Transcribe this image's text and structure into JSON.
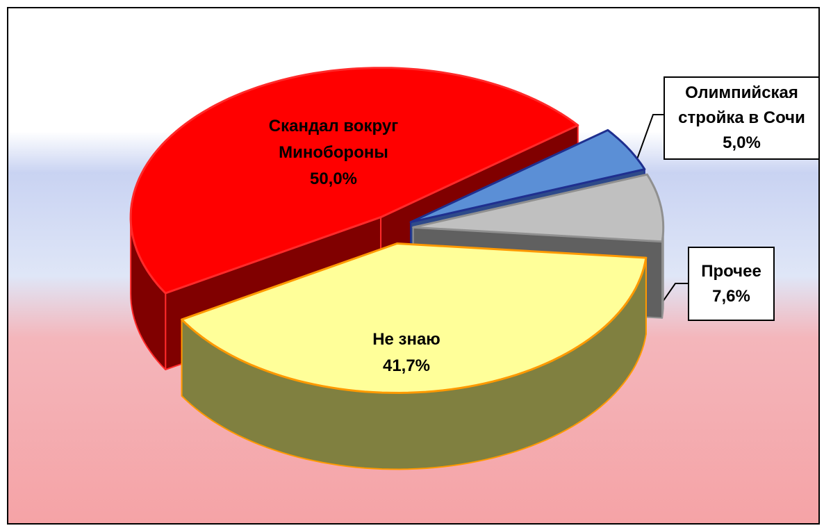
{
  "chart_data": {
    "type": "pie",
    "categories": [
      "Олимпийская стройка в Сочи",
      "Прочее",
      "Не знаю",
      "Скандал вокруг Минобороны"
    ],
    "values": [
      5.0,
      7.6,
      41.7,
      50.0
    ],
    "value_labels": [
      "5,0%",
      "7,6%",
      "41,7%",
      "50,0%"
    ],
    "colors": [
      "#5b8fd6",
      "#c0c0c0",
      "#ffff99",
      "#ff0000"
    ]
  }
}
